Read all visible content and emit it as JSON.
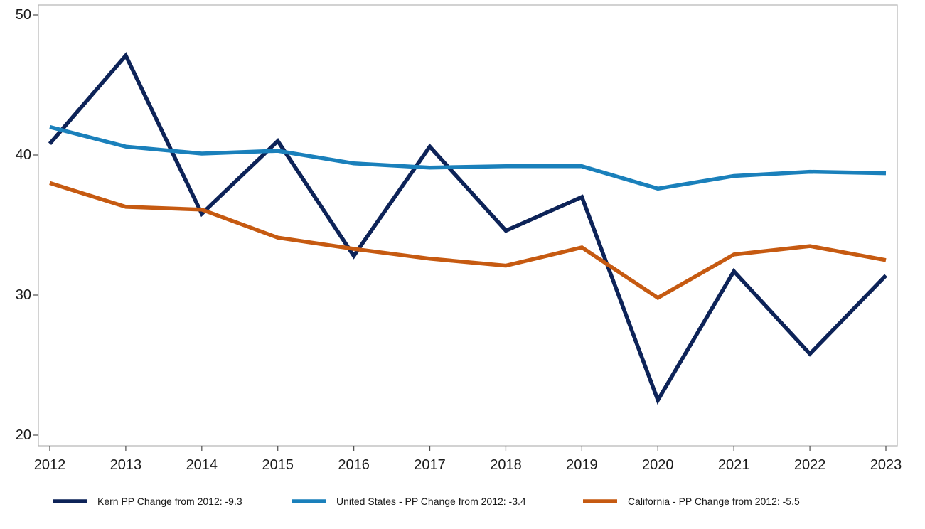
{
  "chart_data": {
    "type": "line",
    "title": "",
    "xlabel": "",
    "ylabel": "",
    "x": [
      2012,
      2013,
      2014,
      2015,
      2016,
      2017,
      2018,
      2019,
      2020,
      2021,
      2022,
      2023
    ],
    "xlim": [
      2012,
      2023
    ],
    "ylim": [
      20,
      50
    ],
    "yticks": [
      20,
      30,
      40,
      50
    ],
    "grid": false,
    "legend_position": "bottom",
    "series": [
      {
        "name": "Kern PP Change from 2012: -9.3",
        "color": "#0d2358",
        "values": [
          40.8,
          47.1,
          35.8,
          41.0,
          32.8,
          40.6,
          34.6,
          37.0,
          22.5,
          31.7,
          25.8,
          31.4
        ]
      },
      {
        "name": "United States - PP Change from 2012: -3.4",
        "color": "#1a80bb",
        "values": [
          42.0,
          40.6,
          40.1,
          40.3,
          39.4,
          39.1,
          39.2,
          39.2,
          37.6,
          38.5,
          38.8,
          38.7
        ]
      },
      {
        "name": "California - PP Change from 2012: -5.5",
        "color": "#c65a11",
        "values": [
          38.0,
          36.3,
          36.1,
          34.1,
          33.3,
          32.6,
          32.1,
          33.4,
          29.8,
          32.9,
          33.5,
          32.5
        ]
      }
    ]
  }
}
